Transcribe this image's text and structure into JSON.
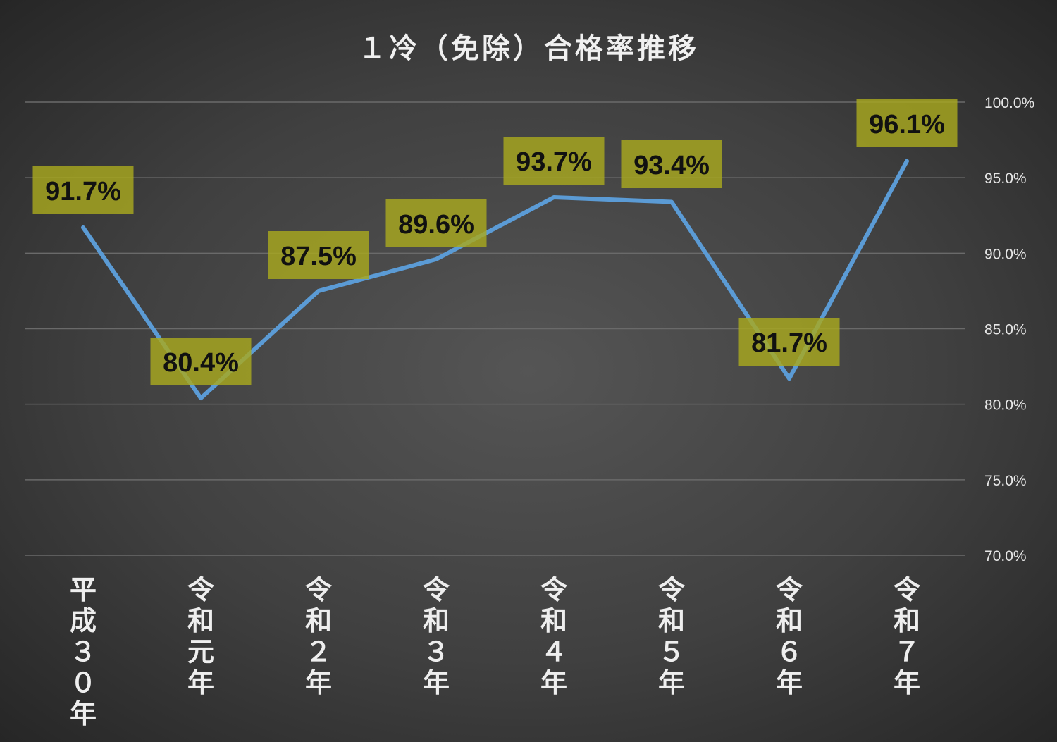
{
  "chart_data": {
    "type": "line",
    "title": "１冷（免除）合格率推移",
    "categories": [
      "平成３０年",
      "令和元年",
      "令和２年",
      "令和３年",
      "令和４年",
      "令和５年",
      "令和６年",
      "令和７年"
    ],
    "series": [
      {
        "values": [
          91.7,
          80.4,
          87.5,
          89.6,
          93.7,
          93.4,
          81.7,
          96.1
        ]
      }
    ],
    "data_labels": [
      "91.7%",
      "80.4%",
      "87.5%",
      "89.6%",
      "93.7%",
      "93.4%",
      "81.7%",
      "96.1%"
    ],
    "y_ticks": [
      100,
      95,
      90,
      85,
      80,
      75,
      70
    ],
    "y_tick_labels": [
      "100.0%",
      "95.0%",
      "90.0%",
      "85.0%",
      "80.0%",
      "75.0%",
      "70.0%"
    ],
    "ylim": [
      70,
      100
    ],
    "y_axis_position": "right",
    "grid": true,
    "legend": "none",
    "colors": {
      "line": "#5b9bd5",
      "label_box": "#a8a81e",
      "label_text": "#111111",
      "gridline": "#6a6a6a",
      "tick_text": "#e6e6e6",
      "category_text": "#eeeeee",
      "title_text": "#f0f0f0"
    }
  }
}
